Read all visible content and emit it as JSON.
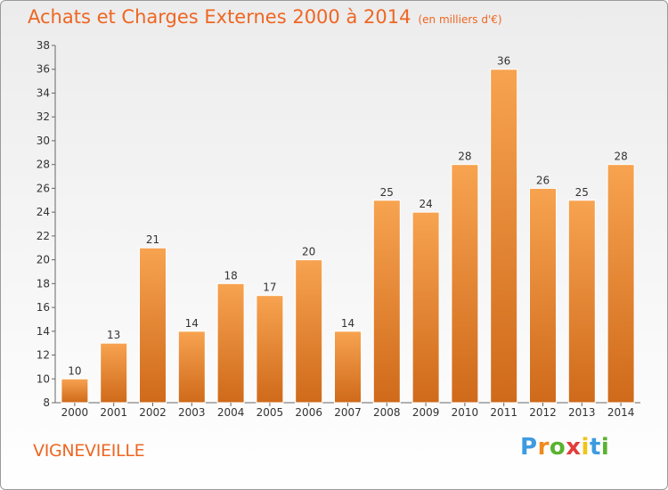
{
  "header": {
    "title": "Achats et Charges Externes 2000 à 2014",
    "subtitle": "(en milliers d'€)"
  },
  "footer": {
    "commune": "VIGNEVIEILLE",
    "logo_letters": [
      "P",
      "r",
      "o",
      "x",
      "i",
      "t",
      "i"
    ],
    "logo_colors": [
      "#3d9be0",
      "#f08a1c",
      "#59b231",
      "#e23d3d",
      "#f0c419",
      "#3d9be0",
      "#59b231"
    ]
  },
  "colors": {
    "title": "#ee6622",
    "bar_light": "#f7a350",
    "bar_dark": "#cf6a1a",
    "axis": "#666666"
  },
  "chart_data": {
    "type": "bar",
    "title": "Achats et Charges Externes 2000 à 2014",
    "subtitle": "(en milliers d'€)",
    "categories": [
      "2000",
      "2001",
      "2002",
      "2003",
      "2004",
      "2005",
      "2006",
      "2007",
      "2008",
      "2009",
      "2010",
      "2011",
      "2012",
      "2013",
      "2014"
    ],
    "values": [
      10,
      13,
      21,
      14,
      18,
      17,
      20,
      14,
      25,
      24,
      28,
      36,
      26,
      25,
      28
    ],
    "ylim": [
      8,
      38
    ],
    "yticks": [
      8,
      10,
      12,
      14,
      16,
      18,
      20,
      22,
      24,
      26,
      28,
      30,
      32,
      34,
      36,
      38
    ],
    "grid": false,
    "data_labels": true
  }
}
